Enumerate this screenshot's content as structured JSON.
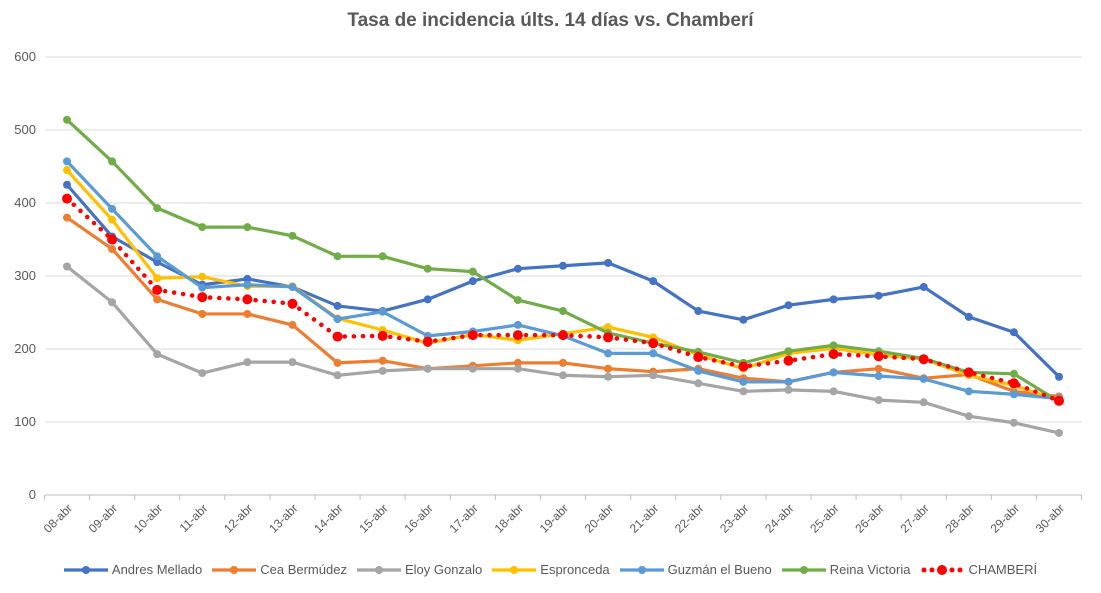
{
  "chart_data": {
    "type": "line",
    "title": "Tasa de incidencia últs. 14 días vs. Chamberí",
    "xlabel": "",
    "ylabel": "",
    "ylim": [
      0,
      600
    ],
    "yticks": [
      "0",
      "100",
      "200",
      "300",
      "400",
      "500",
      "600"
    ],
    "grid": true,
    "legend_position": "bottom",
    "categories": [
      "08-abr",
      "09-abr",
      "10-abr",
      "11-abr",
      "12-abr",
      "13-abr",
      "14-abr",
      "15-abr",
      "16-abr",
      "17-abr",
      "18-abr",
      "19-abr",
      "20-abr",
      "21-abr",
      "22-abr",
      "23-abr",
      "24-abr",
      "25-abr",
      "26-abr",
      "27-abr",
      "28-abr",
      "29-abr",
      "30-abr"
    ],
    "series": [
      {
        "name": "Andres Mellado",
        "color": "#4472C4",
        "style": "solid",
        "values": [
          425,
          354,
          319,
          288,
          296,
          285,
          259,
          252,
          268,
          293,
          310,
          314,
          318,
          293,
          252,
          240,
          260,
          268,
          273,
          285,
          244,
          223,
          162
        ]
      },
      {
        "name": "Cea Bermúdez",
        "color": "#ED7D31",
        "style": "solid",
        "values": [
          380,
          337,
          268,
          248,
          248,
          233,
          181,
          184,
          173,
          177,
          181,
          181,
          173,
          169,
          173,
          160,
          155,
          168,
          173,
          160,
          165,
          142,
          135
        ]
      },
      {
        "name": "Eloy Gonzalo",
        "color": "#A5A5A5",
        "style": "solid",
        "values": [
          313,
          264,
          193,
          167,
          182,
          182,
          164,
          170,
          173,
          173,
          173,
          164,
          162,
          164,
          153,
          142,
          144,
          142,
          130,
          127,
          108,
          99,
          85
        ]
      },
      {
        "name": "Espronceda",
        "color": "#FFC000",
        "style": "solid",
        "values": [
          445,
          377,
          297,
          299,
          286,
          286,
          242,
          226,
          208,
          220,
          212,
          221,
          230,
          216,
          192,
          173,
          194,
          201,
          192,
          186,
          164,
          150,
          130
        ]
      },
      {
        "name": "Guzmán el Bueno",
        "color": "#5B9BD5",
        "style": "solid",
        "values": [
          457,
          392,
          327,
          284,
          288,
          285,
          241,
          251,
          218,
          224,
          233,
          218,
          194,
          194,
          170,
          155,
          155,
          168,
          163,
          159,
          142,
          138,
          132
        ]
      },
      {
        "name": "Reina Victoria",
        "color": "#70AD47",
        "style": "solid",
        "values": [
          514,
          457,
          393,
          367,
          367,
          355,
          327,
          327,
          310,
          306,
          267,
          252,
          222,
          208,
          196,
          181,
          197,
          205,
          197,
          187,
          168,
          166,
          128
        ]
      },
      {
        "name": "CHAMBERÍ",
        "color": "#FF0000",
        "style": "dotted",
        "values": [
          406,
          350,
          281,
          271,
          268,
          262,
          217,
          218,
          210,
          219,
          219,
          219,
          216,
          208,
          189,
          176,
          184,
          193,
          190,
          186,
          168,
          153,
          129
        ]
      }
    ]
  }
}
